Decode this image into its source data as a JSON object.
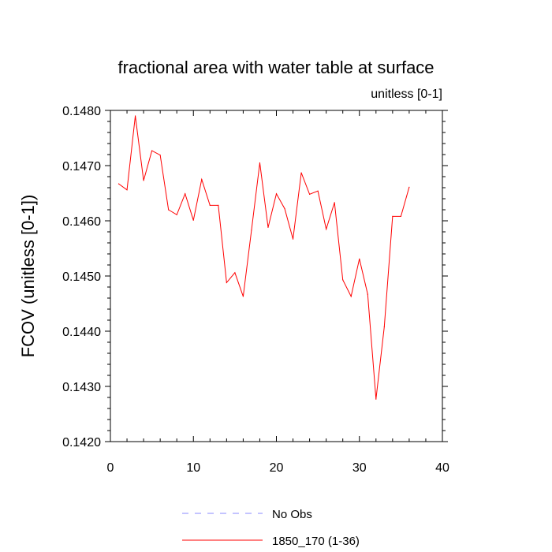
{
  "chart_data": {
    "type": "line",
    "title": "fractional area with water table at surface",
    "subtitle": "unitless [0-1]",
    "ylabel": "FCOV  (unitless [0-1])",
    "xlabel": "",
    "xlim": [
      0,
      40
    ],
    "ylim": [
      0.142,
      0.148
    ],
    "xticks": [
      0,
      10,
      20,
      30,
      40
    ],
    "xtick_labels": [
      "0",
      "10",
      "20",
      "30",
      "40"
    ],
    "yticks": [
      0.142,
      0.143,
      0.144,
      0.145,
      0.146,
      0.147,
      0.148
    ],
    "ytick_labels": [
      "0.1420",
      "0.1430",
      "0.1440",
      "0.1450",
      "0.1460",
      "0.1470",
      "0.1480"
    ],
    "grid": false,
    "legend_position": "bottom",
    "legend": [
      {
        "label": "No Obs",
        "color": "#8888ff",
        "style": "dashed"
      },
      {
        "label": "1850_170 (1-36)",
        "color": "#ff0000",
        "style": "solid"
      }
    ],
    "series": [
      {
        "name": "1850_170 (1-36)",
        "color": "#ff0000",
        "x": [
          1,
          2,
          3,
          4,
          5,
          6,
          7,
          8,
          9,
          10,
          11,
          12,
          13,
          14,
          15,
          16,
          17,
          18,
          19,
          20,
          21,
          22,
          23,
          24,
          25,
          26,
          27,
          28,
          29,
          30,
          31,
          32,
          33,
          34,
          35,
          36
        ],
        "values": [
          0.14667,
          0.14656,
          0.1479,
          0.14673,
          0.14727,
          0.14719,
          0.1462,
          0.14611,
          0.14649,
          0.14601,
          0.14675,
          0.14628,
          0.14628,
          0.14488,
          0.14506,
          0.14463,
          0.14583,
          0.14705,
          0.14588,
          0.14649,
          0.14622,
          0.14567,
          0.14687,
          0.14648,
          0.14654,
          0.14585,
          0.14633,
          0.14493,
          0.14463,
          0.14531,
          0.14467,
          0.14277,
          0.14408,
          0.14608,
          0.14608,
          0.14661
        ]
      }
    ]
  }
}
